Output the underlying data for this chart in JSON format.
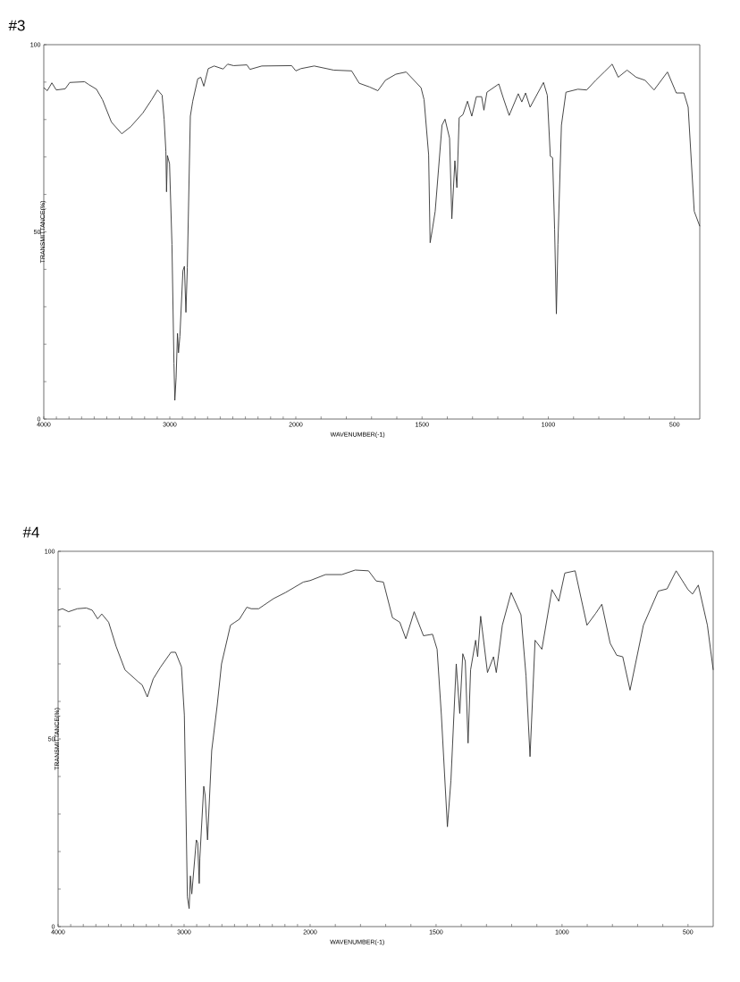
{
  "chart_data": [
    {
      "type": "line",
      "title": "#3",
      "ylabel": "TRANSMITTANCE(%)",
      "color": "#333333",
      "marker": "none",
      "xlim": [
        4000,
        2000
      ],
      "ylim": [
        0,
        100
      ],
      "xticks": [
        4000,
        {
          "value": 3900,
          "label": null
        },
        {
          "value": 3800,
          "label": null
        },
        {
          "value": 3700,
          "label": null
        },
        {
          "value": 3600,
          "label": null
        },
        {
          "value": 3500,
          "label": null
        },
        {
          "value": 3400,
          "label": null
        },
        {
          "value": 3300,
          "label": null
        },
        {
          "value": 3200,
          "label": null
        },
        {
          "value": 3100,
          "label": null
        },
        3000,
        {
          "value": 2900,
          "label": null
        },
        {
          "value": 2800,
          "label": null
        },
        {
          "value": 2700,
          "label": null
        },
        {
          "value": 2600,
          "label": null
        },
        {
          "value": 2500,
          "label": null
        },
        {
          "value": 2400,
          "label": null
        },
        {
          "value": 2300,
          "label": null
        },
        {
          "value": 2200,
          "label": null
        },
        {
          "value": 2100,
          "label": null
        },
        2000
      ],
      "yticks": [
        0,
        {
          "value": 10,
          "label": null
        },
        {
          "value": 20,
          "label": null
        },
        {
          "value": 30,
          "label": null
        },
        {
          "value": 40,
          "label": null
        },
        50,
        {
          "value": 60,
          "label": null
        },
        {
          "value": 70,
          "label": null
        },
        {
          "value": 80,
          "label": null
        },
        {
          "value": 90,
          "label": null
        },
        100
      ],
      "x": [
        4000,
        3972,
        3936,
        3901,
        3830,
        3794,
        3676,
        3641,
        3582,
        3534,
        3463,
        3381,
        3310,
        3215,
        3144,
        3097,
        3061,
        3045,
        3031,
        3026,
        3019,
        3002,
        2983,
        2967,
        2960,
        2950,
        2939,
        2931,
        2920,
        2896,
        2884,
        2872,
        2861,
        2837,
        2818,
        2778,
        2754,
        2730,
        2695,
        2648,
        2577,
        2541,
        2494,
        2388,
        2364,
        2270,
        2033,
        2000
      ],
      "values": [
        88.5,
        87.7,
        89.8,
        87.9,
        88.2,
        89.9,
        90.1,
        89.3,
        88.1,
        85.3,
        79.3,
        76.2,
        78.1,
        81.7,
        85.3,
        87.9,
        86.5,
        80.1,
        71.4,
        60.7,
        70.4,
        68.2,
        46.7,
        14.9,
        5.0,
        11.0,
        22.9,
        17.7,
        22.1,
        39.6,
        40.8,
        28.5,
        40.4,
        80.9,
        84.9,
        90.9,
        91.3,
        88.9,
        93.6,
        94.3,
        93.5,
        94.8,
        94.4,
        94.6,
        93.4,
        94.3,
        94.4,
        93.0
      ]
    },
    {
      "type": "line",
      "xlabel": "WAVENUMBER(-1)",
      "color": "#333333",
      "marker": "none",
      "tick_labels": "x",
      "xlim": [
        2000,
        400
      ],
      "ylim": [
        0,
        100
      ],
      "xticks": [
        {
          "value": 1900,
          "label": null
        },
        {
          "value": 1800,
          "label": null
        },
        {
          "value": 1700,
          "label": null
        },
        {
          "value": 1600,
          "label": null
        },
        1500,
        {
          "value": 1400,
          "label": null
        },
        {
          "value": 1300,
          "label": null
        },
        {
          "value": 1200,
          "label": null
        },
        {
          "value": 1100,
          "label": null
        },
        1000,
        {
          "value": 900,
          "label": null
        },
        {
          "value": 800,
          "label": null
        },
        {
          "value": 700,
          "label": null
        },
        {
          "value": 600,
          "label": null
        },
        500
      ],
      "x": [
        2000,
        1980,
        1927,
        1850,
        1779,
        1749,
        1708,
        1675,
        1645,
        1604,
        1563,
        1504,
        1492,
        1474,
        1468,
        1460,
        1448,
        1421,
        1409,
        1391,
        1382,
        1370,
        1362,
        1353,
        1338,
        1320,
        1303,
        1285,
        1264,
        1255,
        1243,
        1196,
        1178,
        1155,
        1119,
        1105,
        1090,
        1072,
        1019,
        1004,
        992,
        983,
        975,
        968,
        962,
        948,
        930,
        883,
        848,
        812,
        777,
        747,
        723,
        688,
        652,
        617,
        581,
        528,
        493,
        463,
        446,
        422,
        400
      ],
      "values": [
        93.0,
        93.6,
        94.3,
        93.2,
        93.0,
        89.7,
        88.7,
        87.7,
        90.5,
        92.1,
        92.7,
        88.5,
        85.3,
        70.6,
        47.1,
        50.3,
        55.5,
        78.5,
        80.1,
        75.0,
        53.5,
        69.0,
        61.8,
        80.5,
        81.3,
        84.9,
        80.9,
        86.1,
        86.1,
        82.5,
        87.3,
        89.5,
        85.7,
        81.1,
        86.9,
        84.7,
        87.1,
        83.3,
        89.9,
        86.5,
        70.2,
        69.8,
        50.7,
        28.1,
        46.7,
        78.5,
        87.3,
        88.1,
        87.9,
        90.5,
        92.8,
        94.8,
        91.3,
        93.2,
        91.3,
        90.5,
        87.9,
        92.7,
        87.1,
        87.1,
        83.3,
        55.5,
        51.5
      ]
    },
    {
      "type": "line",
      "title": "#4",
      "ylabel": "TRANSMITTANCE(%)",
      "color": "#333333",
      "marker": "none",
      "xlim": [
        4000,
        2000
      ],
      "ylim": [
        0,
        100
      ],
      "xticks": [
        4000,
        {
          "value": 3900,
          "label": null
        },
        {
          "value": 3800,
          "label": null
        },
        {
          "value": 3700,
          "label": null
        },
        {
          "value": 3600,
          "label": null
        },
        {
          "value": 3500,
          "label": null
        },
        {
          "value": 3400,
          "label": null
        },
        {
          "value": 3300,
          "label": null
        },
        {
          "value": 3200,
          "label": null
        },
        {
          "value": 3100,
          "label": null
        },
        3000,
        {
          "value": 2900,
          "label": null
        },
        {
          "value": 2800,
          "label": null
        },
        {
          "value": 2700,
          "label": null
        },
        {
          "value": 2600,
          "label": null
        },
        {
          "value": 2500,
          "label": null
        },
        {
          "value": 2400,
          "label": null
        },
        {
          "value": 2300,
          "label": null
        },
        {
          "value": 2200,
          "label": null
        },
        {
          "value": 2100,
          "label": null
        },
        2000
      ],
      "yticks": [
        0,
        {
          "value": 10,
          "label": null
        },
        {
          "value": 20,
          "label": null
        },
        {
          "value": 30,
          "label": null
        },
        {
          "value": 40,
          "label": null
        },
        50,
        {
          "value": 60,
          "label": null
        },
        {
          "value": 70,
          "label": null
        },
        {
          "value": 80,
          "label": null
        },
        {
          "value": 90,
          "label": null
        },
        100
      ],
      "x": [
        4000,
        3965,
        3917,
        3847,
        3776,
        3729,
        3686,
        3653,
        3599,
        3540,
        3469,
        3363,
        3333,
        3292,
        3245,
        3186,
        3104,
        3068,
        3021,
        2998,
        2986,
        2974,
        2960,
        2950,
        2939,
        2903,
        2892,
        2880,
        2875,
        2844,
        2833,
        2814,
        2781,
        2738,
        2703,
        2632,
        2597,
        2561,
        2502,
        2467,
        2408,
        2290,
        2196,
        2054,
        2000
      ],
      "values": [
        84.3,
        84.7,
        83.9,
        84.7,
        84.9,
        84.3,
        82.0,
        83.3,
        81.1,
        74.7,
        68.4,
        65.2,
        64.4,
        61.2,
        66.0,
        69.2,
        73.1,
        73.1,
        69.2,
        56.4,
        32.6,
        7.9,
        4.8,
        13.5,
        8.7,
        23.1,
        22.3,
        11.5,
        18.3,
        37.4,
        35.0,
        23.1,
        46.9,
        58.8,
        70.0,
        80.3,
        81.1,
        81.9,
        85.1,
        84.7,
        84.7,
        87.4,
        89.0,
        91.8,
        92.2
      ]
    },
    {
      "type": "line",
      "xlabel": "WAVENUMBER(-1)",
      "color": "#333333",
      "marker": "none",
      "tick_labels": "x",
      "xlim": [
        2000,
        400
      ],
      "ylim": [
        0,
        100
      ],
      "xticks": [
        {
          "value": 1900,
          "label": null
        },
        {
          "value": 1800,
          "label": null
        },
        {
          "value": 1700,
          "label": null
        },
        {
          "value": 1600,
          "label": null
        },
        1500,
        {
          "value": 1400,
          "label": null
        },
        {
          "value": 1300,
          "label": null
        },
        {
          "value": 1200,
          "label": null
        },
        {
          "value": 1100,
          "label": null
        },
        1000,
        {
          "value": 900,
          "label": null
        },
        {
          "value": 800,
          "label": null
        },
        {
          "value": 700,
          "label": null
        },
        {
          "value": 600,
          "label": null
        },
        500
      ],
      "x": [
        2000,
        1939,
        1874,
        1821,
        1768,
        1738,
        1709,
        1673,
        1644,
        1620,
        1587,
        1550,
        1514,
        1496,
        1479,
        1455,
        1441,
        1420,
        1406,
        1394,
        1384,
        1373,
        1363,
        1343,
        1335,
        1323,
        1296,
        1272,
        1261,
        1237,
        1202,
        1163,
        1143,
        1127,
        1107,
        1080,
        1040,
        1013,
        989,
        948,
        901,
        866,
        842,
        809,
        783,
        759,
        730,
        677,
        618,
        583,
        547,
        500,
        482,
        459,
        423,
        400
      ],
      "values": [
        92.2,
        93.8,
        93.8,
        95.0,
        94.8,
        92.1,
        91.8,
        82.3,
        81.1,
        76.7,
        83.9,
        77.5,
        77.9,
        73.9,
        56.4,
        26.6,
        39.0,
        70.0,
        56.8,
        72.7,
        70.7,
        48.9,
        68.4,
        76.3,
        71.9,
        82.7,
        67.7,
        71.9,
        67.7,
        80.3,
        89.0,
        83.1,
        66.8,
        45.3,
        76.3,
        73.9,
        89.8,
        86.7,
        94.2,
        94.8,
        80.3,
        83.5,
        85.9,
        75.5,
        72.3,
        71.9,
        63.0,
        80.3,
        89.4,
        90.0,
        94.8,
        89.8,
        88.6,
        91.0,
        80.3,
        68.4
      ]
    }
  ]
}
